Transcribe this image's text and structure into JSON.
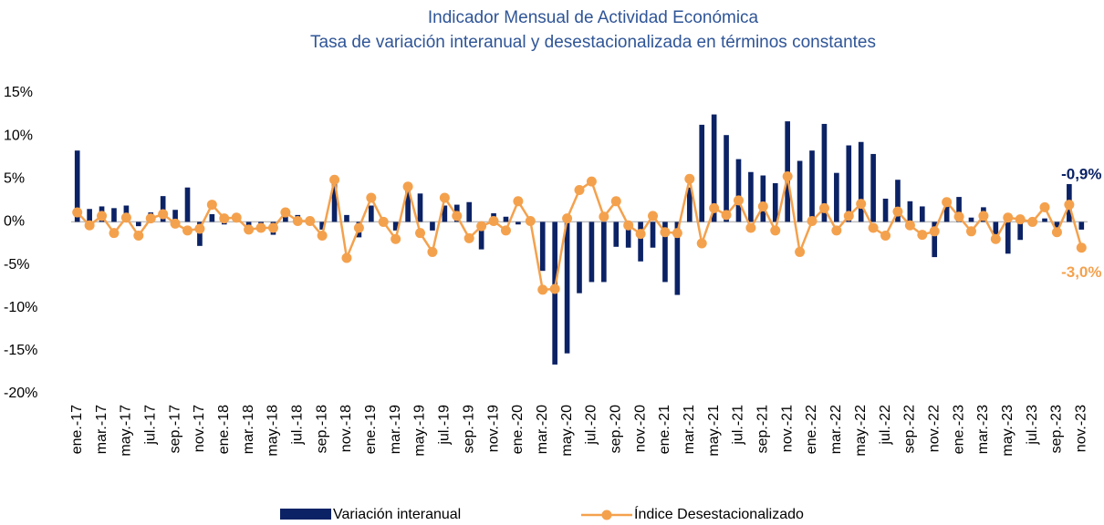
{
  "chart_data": {
    "type": "bar-line",
    "title": "Indicador Mensual de Actividad Económica",
    "subtitle": "Tasa de variación interanual y desestacionalizada en términos constantes",
    "categories": [
      "ene.-17",
      null,
      "mar.-17",
      null,
      "may.-17",
      null,
      "jul.-17",
      null,
      "sep.-17",
      null,
      "nov.-17",
      null,
      "ene.-18",
      null,
      "mar.-18",
      null,
      "may.-18",
      null,
      "jul.-18",
      null,
      "sep.-18",
      null,
      "nov.-18",
      null,
      "ene.-19",
      null,
      "mar.-19",
      null,
      "may.-19",
      null,
      "jul.-19",
      null,
      "sep.-19",
      null,
      "nov.-19",
      null,
      "ene.-20",
      null,
      "mar.-20",
      null,
      "may.-20",
      null,
      "jul.-20",
      null,
      "sep.-20",
      null,
      "nov.-20",
      null,
      "ene.-21",
      null,
      "mar.-21",
      null,
      "may.-21",
      null,
      "jul.-21",
      null,
      "sep.-21",
      null,
      "nov.-21",
      null,
      "ene.-22",
      null,
      "mar.-22",
      null,
      "may.-22",
      null,
      "jul.-22",
      null,
      "sep.-22",
      null,
      "nov.-22",
      null,
      "ene.-23",
      null,
      "mar.-23",
      null,
      "may.-23",
      null,
      "jul.-23",
      null,
      "sep.-23",
      null,
      "nov.-23"
    ],
    "series": [
      {
        "name": "Variación interanual",
        "kind": "bar",
        "color": "#0b2265",
        "values": [
          8.3,
          1.5,
          1.8,
          1.6,
          1.9,
          -0.5,
          1.1,
          3.0,
          1.4,
          4.0,
          -2.8,
          0.9,
          -0.3,
          0.7,
          -0.7,
          -0.2,
          -1.5,
          1.1,
          0.8,
          0.3,
          -0.9,
          4.5,
          0.8,
          -1.8,
          1.9,
          0.4,
          -1.0,
          4.3,
          3.3,
          -1.0,
          1.9,
          2.0,
          2.3,
          -3.2,
          1.0,
          0.6,
          -0.3,
          0.0,
          -5.7,
          -16.6,
          -15.3,
          -8.3,
          -7.0,
          -7.0,
          -2.9,
          -3.0,
          -4.6,
          -3.0,
          -7.0,
          -8.5,
          4.0,
          11.3,
          12.5,
          10.1,
          7.3,
          5.8,
          5.4,
          4.5,
          11.7,
          7.1,
          8.3,
          11.4,
          5.7,
          8.9,
          9.3,
          7.9,
          2.7,
          4.9,
          2.4,
          1.8,
          -4.1,
          1.8,
          2.9,
          0.5,
          1.7,
          -1.8,
          -3.7,
          -2.1,
          0.1,
          0.4,
          -0.7,
          4.4,
          -0.9
        ],
        "value_labels": [
          null,
          null,
          null,
          null,
          null,
          null,
          null,
          null,
          null,
          null,
          null,
          null,
          null,
          null,
          null,
          null,
          null,
          null,
          null,
          null,
          null,
          null,
          null,
          null,
          null,
          null,
          null,
          null,
          null,
          null,
          null,
          null,
          null,
          null,
          null,
          null,
          null,
          null,
          null,
          null,
          null,
          null,
          null,
          null,
          null,
          null,
          null,
          null,
          null,
          null,
          null,
          null,
          null,
          null,
          null,
          null,
          null,
          null,
          null,
          null,
          null,
          null,
          null,
          null,
          null,
          null,
          null,
          null,
          null,
          null,
          null,
          null,
          null,
          null,
          null,
          null,
          null,
          null,
          null,
          null,
          null,
          null,
          "-0,9%"
        ]
      },
      {
        "name": "Índice Desestacionalizado",
        "kind": "line",
        "color": "#f4a14d",
        "values": [
          1.1,
          -0.4,
          0.7,
          -1.3,
          0.5,
          -1.6,
          0.4,
          0.9,
          -0.2,
          -1.0,
          -0.8,
          2.0,
          0.4,
          0.5,
          -0.9,
          -0.7,
          -0.7,
          1.1,
          0.1,
          0.1,
          -1.6,
          4.9,
          -4.2,
          -0.7,
          2.8,
          0.0,
          -2.0,
          4.1,
          -1.3,
          -3.5,
          2.8,
          0.7,
          -1.9,
          -0.5,
          0.1,
          -1.0,
          2.4,
          0.1,
          -7.9,
          -7.8,
          0.4,
          3.7,
          4.7,
          0.6,
          2.4,
          -0.4,
          -1.4,
          0.7,
          -1.2,
          -1.3,
          5.0,
          -2.5,
          1.6,
          0.8,
          2.5,
          -0.7,
          1.8,
          -1.0,
          5.3,
          -3.5,
          0.1,
          1.6,
          -1.0,
          0.7,
          2.1,
          -0.7,
          -1.6,
          1.2,
          -0.4,
          -1.5,
          -1.1,
          2.3,
          0.6,
          -1.1,
          0.7,
          -2.0,
          0.5,
          0.3,
          0.0,
          1.7,
          -1.2,
          2.0,
          -3.0
        ],
        "value_labels": [
          null,
          null,
          null,
          null,
          null,
          null,
          null,
          null,
          null,
          null,
          null,
          null,
          null,
          null,
          null,
          null,
          null,
          null,
          null,
          null,
          null,
          null,
          null,
          null,
          null,
          null,
          null,
          null,
          null,
          null,
          null,
          null,
          null,
          null,
          null,
          null,
          null,
          null,
          null,
          null,
          null,
          null,
          null,
          null,
          null,
          null,
          null,
          null,
          null,
          null,
          null,
          null,
          null,
          null,
          null,
          null,
          null,
          null,
          null,
          null,
          null,
          null,
          null,
          null,
          null,
          null,
          null,
          null,
          null,
          null,
          null,
          null,
          null,
          null,
          null,
          null,
          null,
          null,
          null,
          null,
          null,
          null,
          "-3,0%"
        ]
      }
    ],
    "ylim": [
      -20,
      15
    ],
    "yticks": [
      {
        "value": -20,
        "label": "-20%"
      },
      {
        "value": -15,
        "label": "-15%"
      },
      {
        "value": -10,
        "label": "-10%"
      },
      {
        "value": -5,
        "label": "-5%"
      },
      {
        "value": 0,
        "label": "0%"
      },
      {
        "value": 5,
        "label": "5%"
      },
      {
        "value": 10,
        "label": "10%"
      },
      {
        "value": 15,
        "label": "15%"
      }
    ],
    "grid": false,
    "legend": "bottom"
  }
}
